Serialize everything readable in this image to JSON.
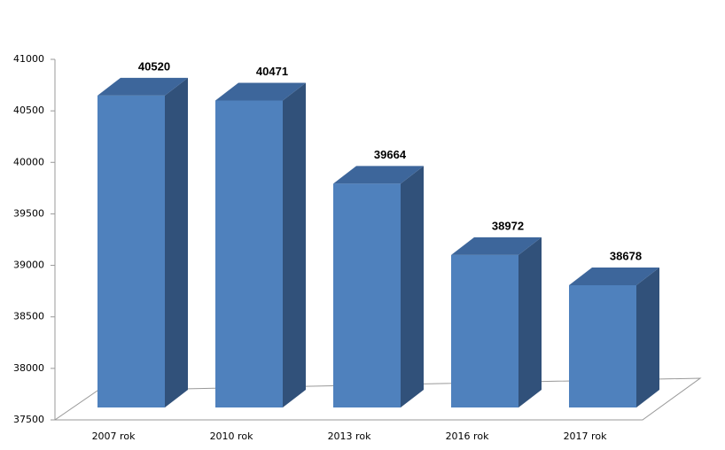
{
  "chart_data": {
    "type": "bar3d",
    "categories": [
      "2007 rok",
      "2010 rok",
      "2013 rok",
      "2016 rok",
      "2017 rok"
    ],
    "values": [
      40520,
      40471,
      39664,
      38972,
      38678
    ],
    "color": "#4f81bd",
    "ylim": [
      37500,
      41000
    ],
    "yticks": [
      37500,
      38000,
      38500,
      39000,
      39500,
      40000,
      40500,
      41000
    ]
  }
}
